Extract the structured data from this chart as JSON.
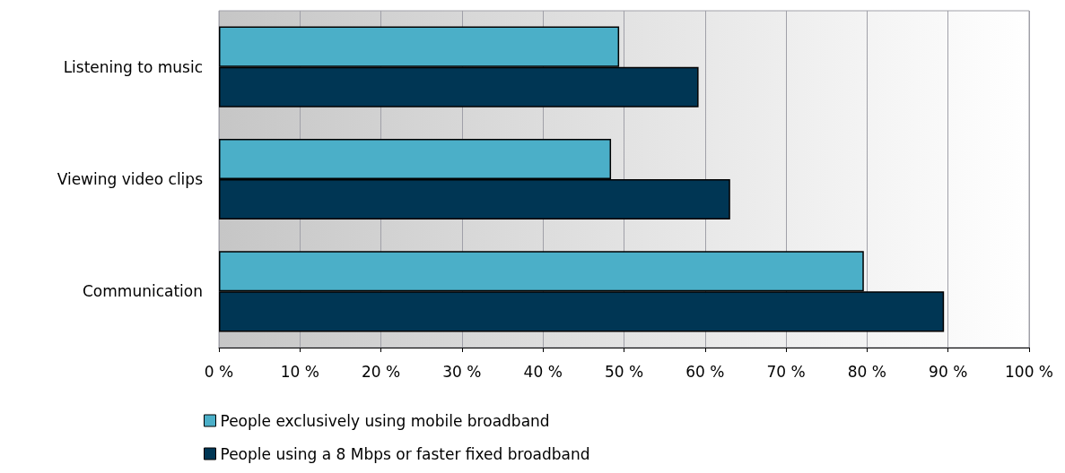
{
  "chart_data": {
    "type": "bar",
    "orientation": "horizontal",
    "categories": [
      "Listening to music",
      "Viewing video clips",
      "Communication"
    ],
    "series": [
      {
        "name": "People exclusively using mobile broadband",
        "color": "#4bafc8",
        "values": [
          49.4,
          48.4,
          79.6
        ]
      },
      {
        "name": "People using a 8 Mbps or faster fixed broadband",
        "color": "#003654",
        "values": [
          59.2,
          63.1,
          89.5
        ]
      }
    ],
    "xlim": [
      0,
      100
    ],
    "xticks": [
      {
        "value": 0,
        "label": "0 %"
      },
      {
        "value": 10,
        "label": "10 %"
      },
      {
        "value": 20,
        "label": "20 %"
      },
      {
        "value": 30,
        "label": "30 %"
      },
      {
        "value": 40,
        "label": "40 %"
      },
      {
        "value": 50,
        "label": "50 %"
      },
      {
        "value": 60,
        "label": "60 %"
      },
      {
        "value": 70,
        "label": "70 %"
      },
      {
        "value": 80,
        "label": "80 %"
      },
      {
        "value": 90,
        "label": "90 %"
      },
      {
        "value": 100,
        "label": "100 %"
      }
    ],
    "grid": "x",
    "legend": "bottom"
  }
}
